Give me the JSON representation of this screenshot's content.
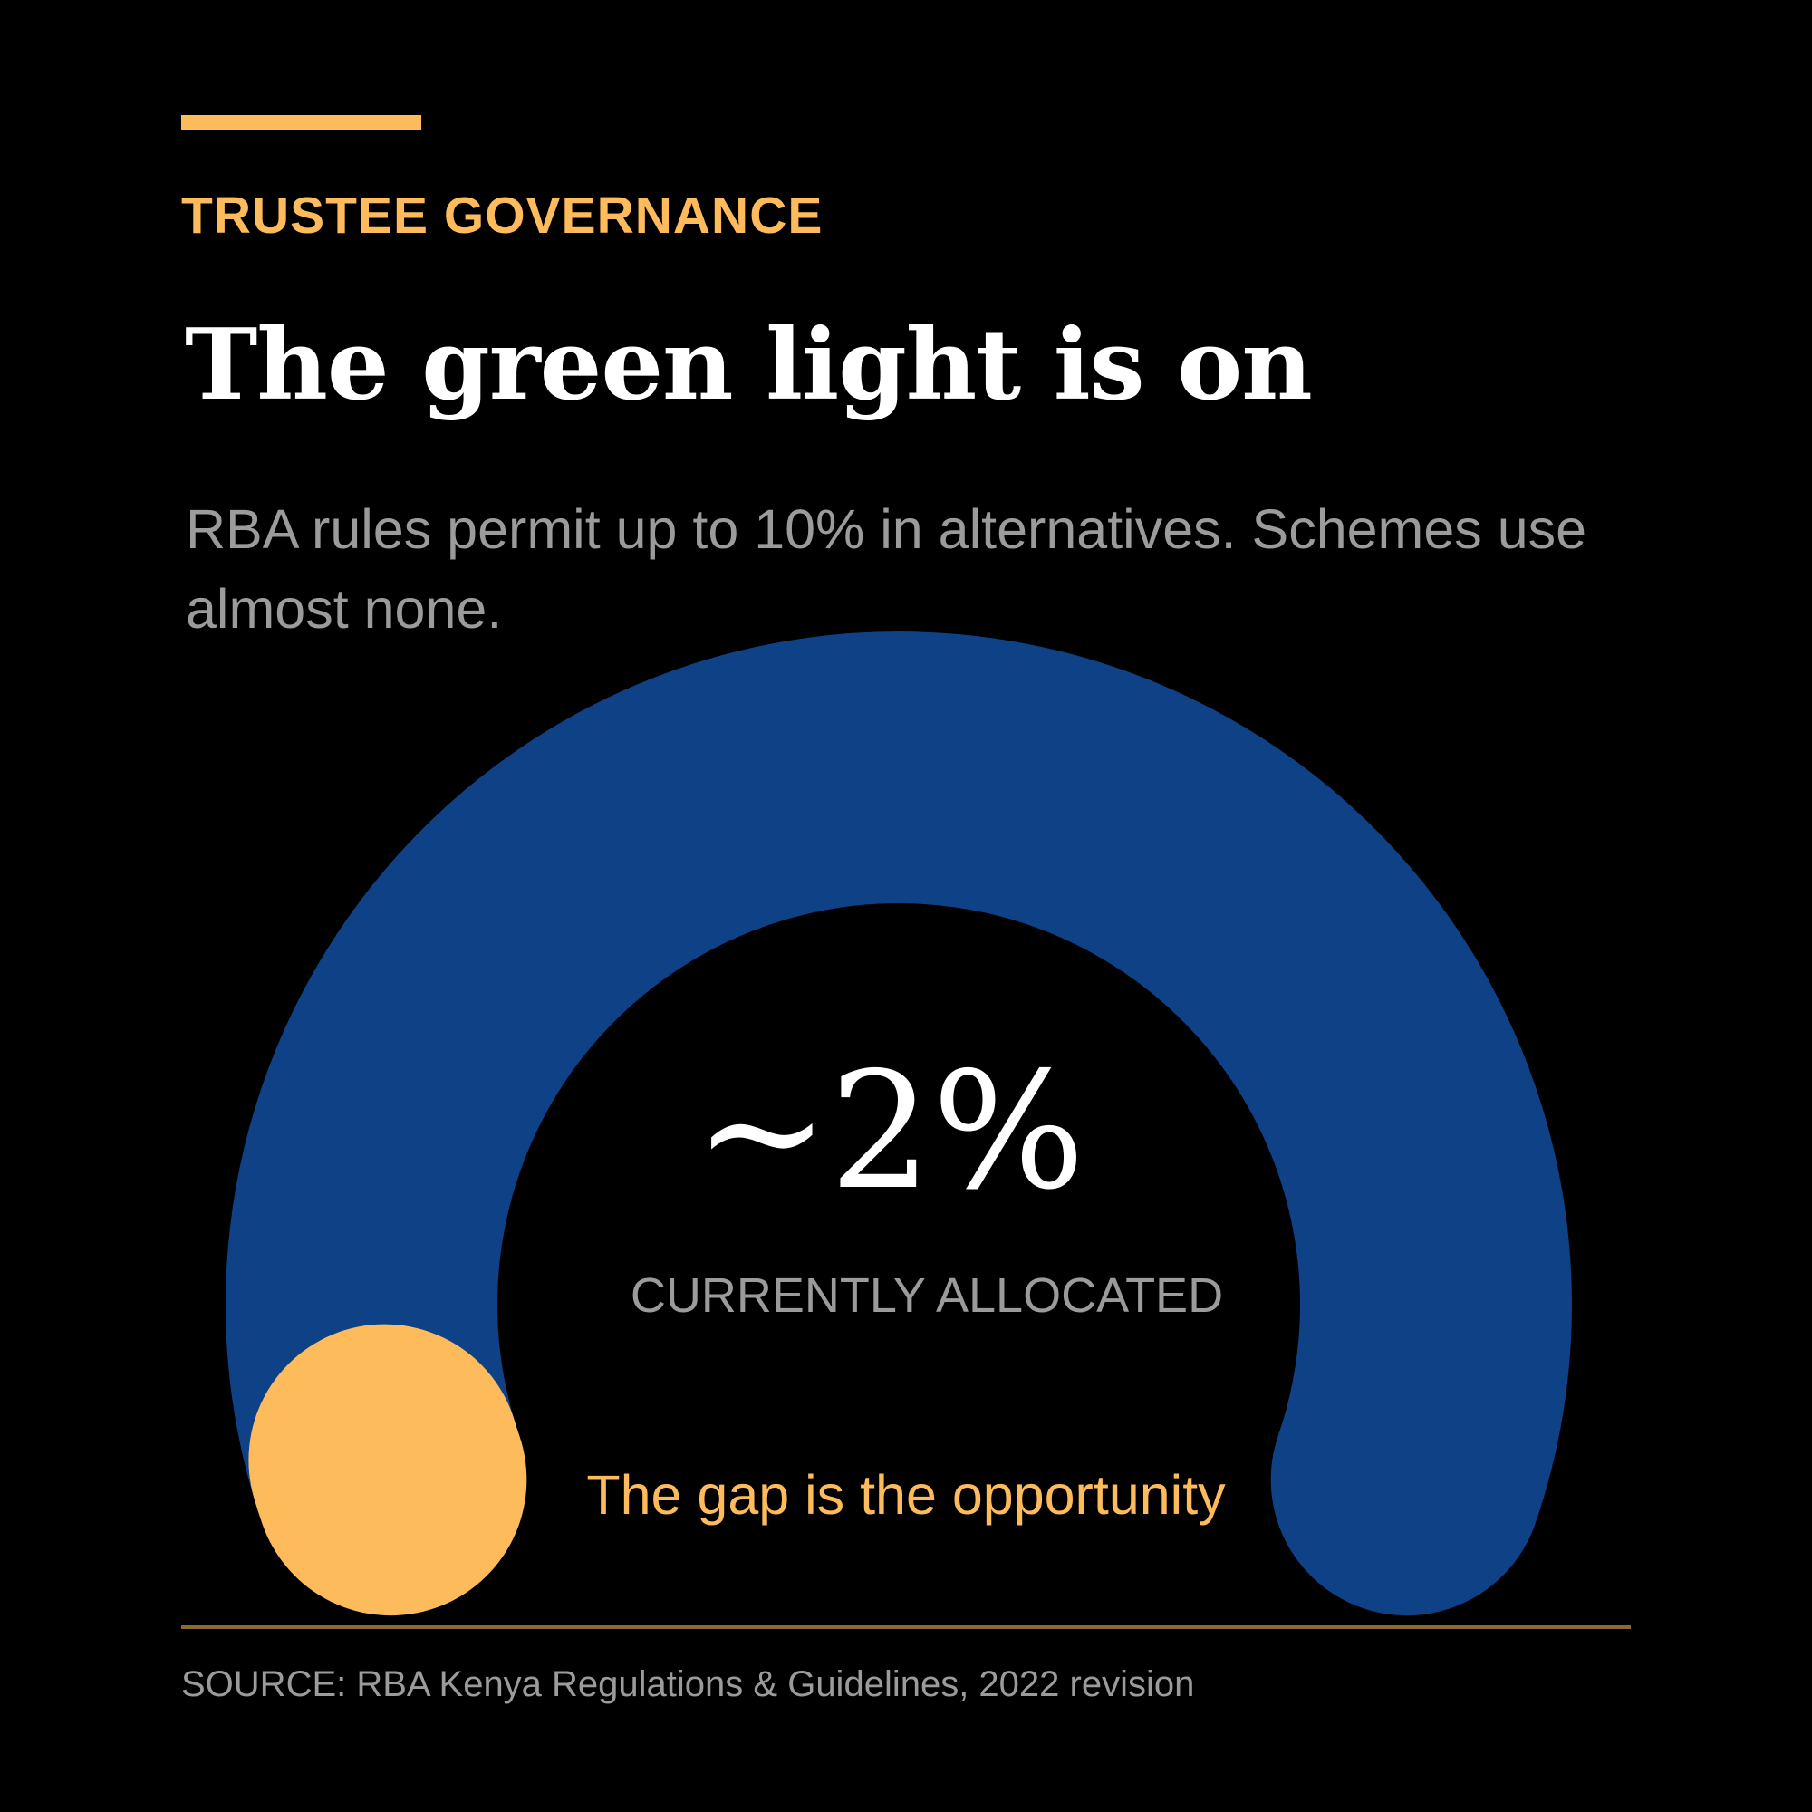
{
  "header": {
    "kicker": "TRUSTEE GOVERNANCE",
    "title": "The green light is on",
    "subtitle": "RBA rules permit up to 10% in alternatives. Schemes use almost none."
  },
  "chart_data": {
    "type": "gauge",
    "limit_percent": 10,
    "allocated_percent": 2,
    "value_text": "~2%",
    "value_label": "CURRENTLY ALLOCATED",
    "colors": {
      "track": "#0F4186",
      "fill": "#FDBB5B"
    }
  },
  "callout": "The gap is the opportunity",
  "footer": {
    "source": "SOURCE: RBA Kenya Regulations & Guidelines, 2022 revision"
  },
  "colors": {
    "background": "#000000",
    "accent": "#FDBB5B",
    "muted_text": "#9b9b9b"
  }
}
